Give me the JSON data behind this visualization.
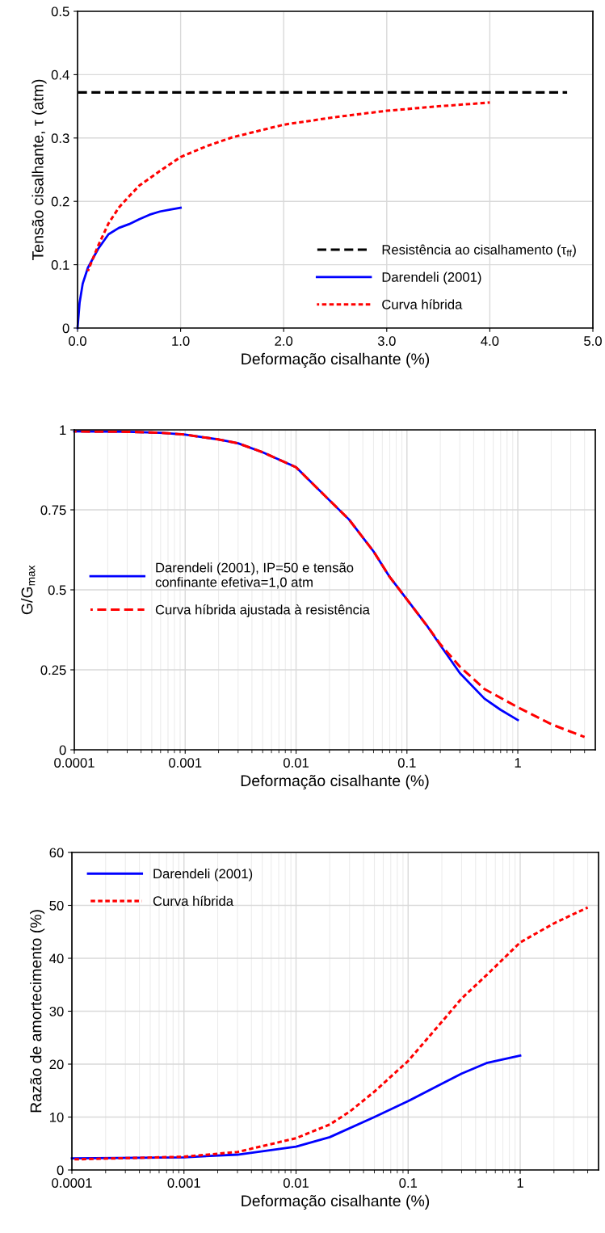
{
  "chart_data": [
    {
      "type": "line",
      "xlabel": "Deformação cisalhante (%)",
      "ylabel": "Tensão cisalhante, τ (atm)",
      "xlim": [
        0,
        5
      ],
      "ylim": [
        0,
        0.5
      ],
      "xticks": [
        {
          "value": 0,
          "label": "0.0"
        },
        {
          "value": 1,
          "label": "1.0"
        },
        {
          "value": 2,
          "label": "2.0"
        },
        {
          "value": 3,
          "label": "3.0"
        },
        {
          "value": 4,
          "label": "4.0"
        },
        {
          "value": 5,
          "label": "5.0"
        }
      ],
      "yticks": [
        0,
        0.1,
        0.2,
        0.3,
        0.4,
        0.5
      ],
      "grid": true,
      "legend": "bottom right",
      "marker": "none",
      "series": [
        {
          "name": "Resistência ao cisalhamento (τ$_{ff}$)",
          "color": "#000000",
          "line_style": "dashed",
          "x": [
            0,
            4.75
          ],
          "values": [
            0.372,
            0.372
          ]
        },
        {
          "name": "Darendeli (2001)",
          "color": "#0000ff",
          "line_style": "solid",
          "x": [
            0,
            0.02,
            0.05,
            0.1,
            0.2,
            0.3,
            0.4,
            0.5,
            0.6,
            0.7,
            0.8,
            0.9,
            1.0
          ],
          "values": [
            0,
            0.04,
            0.07,
            0.095,
            0.125,
            0.148,
            0.158,
            0.164,
            0.172,
            0.179,
            0.184,
            0.187,
            0.19
          ]
        },
        {
          "name": "Curva híbrida",
          "color": "#ff0000",
          "line_style": "dotted",
          "x": [
            0.1,
            0.2,
            0.3,
            0.4,
            0.5,
            0.6,
            0.8,
            1.0,
            1.25,
            1.5,
            2.0,
            2.5,
            3.0,
            3.5,
            4.0
          ],
          "values": [
            0.09,
            0.13,
            0.165,
            0.19,
            0.208,
            0.225,
            0.248,
            0.27,
            0.287,
            0.301,
            0.321,
            0.333,
            0.343,
            0.35,
            0.356
          ]
        }
      ]
    },
    {
      "type": "line",
      "xlabel": "Deformação cisalhante (%)",
      "ylabel": "G/G$_{max}$",
      "log": "x",
      "xlim": [
        0.0001,
        5
      ],
      "ylim": [
        0,
        1
      ],
      "xticks": [
        0.0001,
        0.001,
        0.01,
        0.1,
        1
      ],
      "yticks": [
        0,
        0.25,
        0.5,
        0.75,
        1
      ],
      "grid": true,
      "legend": "left",
      "marker": "none",
      "series": [
        {
          "name": "Darendeli (2001), IP=50 e tensão\nconfinante efetiva=1,0 atm",
          "color": "#0000ff",
          "line_style": "solid",
          "x": [
            0.0001,
            0.0003,
            0.0006,
            0.001,
            0.002,
            0.003,
            0.005,
            0.01,
            0.02,
            0.03,
            0.05,
            0.07,
            0.1,
            0.15,
            0.2,
            0.3,
            0.5,
            0.7,
            1
          ],
          "values": [
            0.995,
            0.994,
            0.991,
            0.985,
            0.97,
            0.958,
            0.93,
            0.883,
            0.78,
            0.72,
            0.62,
            0.54,
            0.47,
            0.39,
            0.327,
            0.24,
            0.16,
            0.125,
            0.093
          ]
        },
        {
          "name": "Curva híbrida ajustada à resistência",
          "color": "#ff0000",
          "line_style": "dashed",
          "x": [
            0.0001,
            0.0003,
            0.0006,
            0.001,
            0.002,
            0.003,
            0.005,
            0.01,
            0.02,
            0.03,
            0.05,
            0.07,
            0.1,
            0.15,
            0.2,
            0.3,
            0.5,
            1,
            2,
            4
          ],
          "values": [
            0.995,
            0.994,
            0.991,
            0.985,
            0.97,
            0.958,
            0.93,
            0.883,
            0.78,
            0.72,
            0.62,
            0.54,
            0.47,
            0.39,
            0.33,
            0.26,
            0.19,
            0.133,
            0.08,
            0.04
          ]
        }
      ]
    },
    {
      "type": "line",
      "xlabel": "Deformação cisalhante (%)",
      "ylabel": "Razão de amortecimento (%)",
      "log": "x",
      "xlim": [
        0.0001,
        5
      ],
      "ylim": [
        0,
        60
      ],
      "xticks": [
        0.0001,
        0.001,
        0.01,
        0.1,
        1
      ],
      "yticks": [
        0,
        10,
        20,
        30,
        40,
        50,
        60
      ],
      "grid": true,
      "legend": "top left",
      "marker": "none",
      "series": [
        {
          "name": "Darendeli (2001)",
          "color": "#0000ff",
          "line_style": "solid",
          "x": [
            0.0001,
            0.001,
            0.003,
            0.01,
            0.02,
            0.05,
            0.1,
            0.2,
            0.3,
            0.5,
            1
          ],
          "values": [
            2.2,
            2.4,
            2.9,
            4.4,
            6.2,
            10,
            13,
            16.3,
            18.2,
            20.2,
            21.6
          ]
        },
        {
          "name": "Curva híbrida",
          "color": "#ff0000",
          "line_style": "dotted",
          "x": [
            0.0001,
            0.001,
            0.003,
            0.01,
            0.02,
            0.03,
            0.05,
            0.1,
            0.2,
            0.3,
            0.5,
            1,
            2,
            4
          ],
          "values": [
            2.0,
            2.5,
            3.4,
            6.0,
            8.6,
            11,
            14.8,
            20.6,
            28,
            32.4,
            36.8,
            43,
            46.6,
            49.6
          ]
        }
      ]
    }
  ]
}
